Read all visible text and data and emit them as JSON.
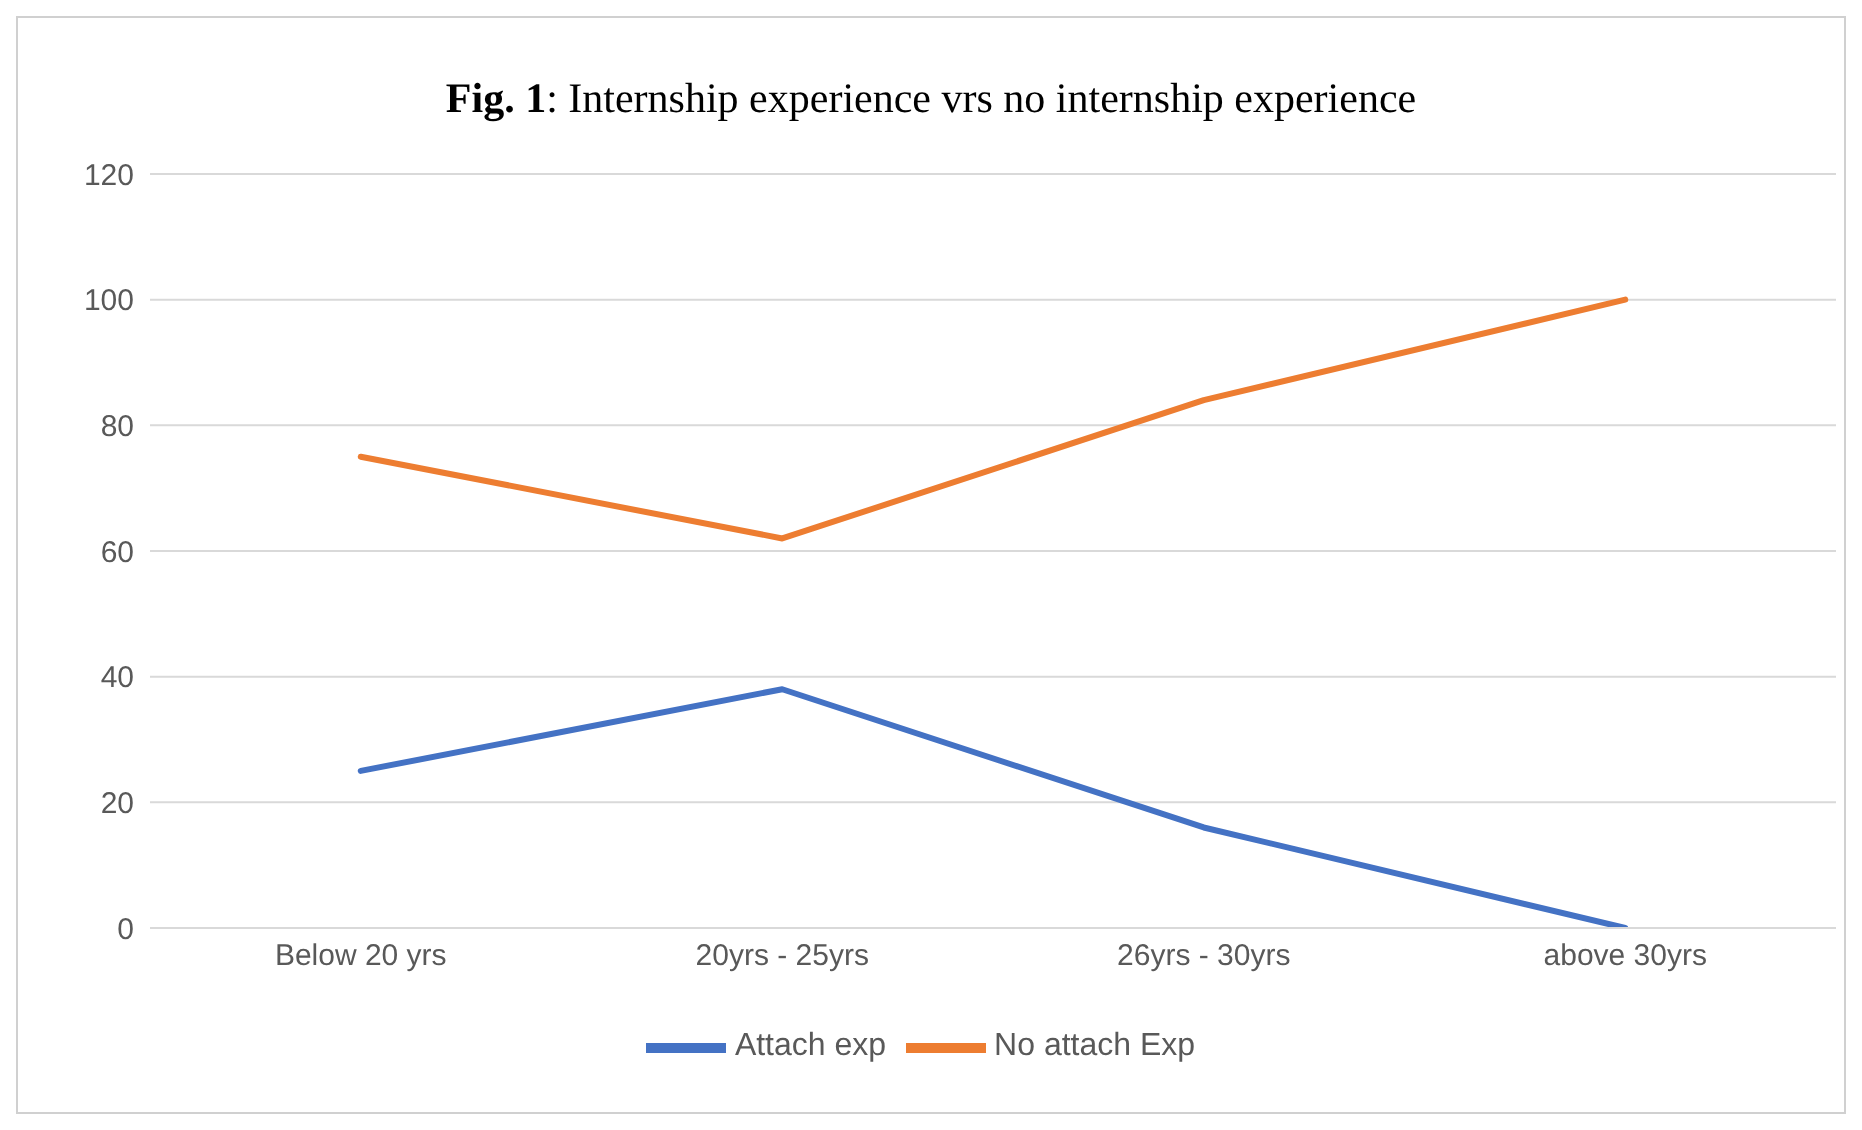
{
  "chart_data": {
    "type": "line",
    "title": "Fig. 1: Internship experience vrs no internship experience",
    "categories": [
      "Below 20 yrs",
      "20yrs - 25yrs",
      "26yrs - 30yrs",
      "above 30yrs"
    ],
    "series": [
      {
        "name": "Attach exp",
        "color": "#4472c4",
        "values": [
          25,
          38,
          16,
          0
        ]
      },
      {
        "name": "No attach Exp",
        "color": "#ed7d31",
        "values": [
          75,
          62,
          84,
          100
        ]
      }
    ],
    "ylim": [
      0,
      120
    ],
    "yticks": [
      0,
      20,
      40,
      60,
      80,
      100,
      120
    ],
    "grid": "y",
    "legend": "bottom",
    "marker": "none",
    "line_style": "solid"
  }
}
